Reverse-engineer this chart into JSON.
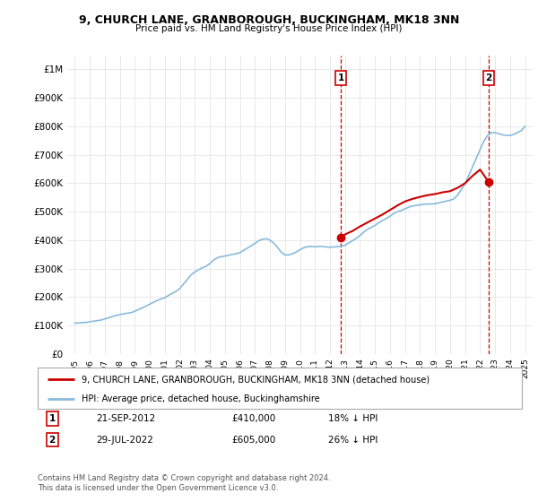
{
  "title": "9, CHURCH LANE, GRANBOROUGH, BUCKINGHAM, MK18 3NN",
  "subtitle": "Price paid vs. HM Land Registry's House Price Index (HPI)",
  "hpi_label": "HPI: Average price, detached house, Buckinghamshire",
  "property_label": "9, CHURCH LANE, GRANBOROUGH, BUCKINGHAM, MK18 3NN (detached house)",
  "hpi_color": "#88bbdd",
  "property_color": "#cc0000",
  "marker_color": "#cc0000",
  "vline_color": "#cc0000",
  "annotation_box_color": "#cc0000",
  "footer": "Contains HM Land Registry data © Crown copyright and database right 2024.\nThis data is licensed under the Open Government Licence v3.0.",
  "annotation1": {
    "num": "1",
    "date": "21-SEP-2012",
    "price": "£410,000",
    "hpi_diff": "18% ↓ HPI",
    "year": 2012.72
  },
  "annotation2": {
    "num": "2",
    "date": "29-JUL-2022",
    "price": "£605,000",
    "hpi_diff": "26% ↓ HPI",
    "year": 2022.56
  },
  "ylim": [
    0,
    1050000
  ],
  "yticks": [
    0,
    100000,
    200000,
    300000,
    400000,
    500000,
    600000,
    700000,
    800000,
    900000,
    1000000
  ],
  "ytick_labels": [
    "£0",
    "£100K",
    "£200K",
    "£300K",
    "£400K",
    "£500K",
    "£600K",
    "£700K",
    "£800K",
    "£900K",
    "£1M"
  ],
  "hpi_data": [
    [
      1995.0,
      108000
    ],
    [
      1995.25,
      109000
    ],
    [
      1995.5,
      110000
    ],
    [
      1995.75,
      110500
    ],
    [
      1996.0,
      113000
    ],
    [
      1996.25,
      115000
    ],
    [
      1996.5,
      117000
    ],
    [
      1996.75,
      119000
    ],
    [
      1997.0,
      123000
    ],
    [
      1997.25,
      127000
    ],
    [
      1997.5,
      131000
    ],
    [
      1997.75,
      135000
    ],
    [
      1998.0,
      138000
    ],
    [
      1998.25,
      141000
    ],
    [
      1998.5,
      143000
    ],
    [
      1998.75,
      145000
    ],
    [
      1999.0,
      150000
    ],
    [
      1999.25,
      156000
    ],
    [
      1999.5,
      162000
    ],
    [
      1999.75,
      168000
    ],
    [
      2000.0,
      175000
    ],
    [
      2000.25,
      182000
    ],
    [
      2000.5,
      188000
    ],
    [
      2000.75,
      193000
    ],
    [
      2001.0,
      198000
    ],
    [
      2001.25,
      206000
    ],
    [
      2001.5,
      213000
    ],
    [
      2001.75,
      220000
    ],
    [
      2002.0,
      230000
    ],
    [
      2002.25,
      246000
    ],
    [
      2002.5,
      262000
    ],
    [
      2002.75,
      278000
    ],
    [
      2003.0,
      288000
    ],
    [
      2003.25,
      296000
    ],
    [
      2003.5,
      303000
    ],
    [
      2003.75,
      308000
    ],
    [
      2004.0,
      318000
    ],
    [
      2004.25,
      330000
    ],
    [
      2004.5,
      338000
    ],
    [
      2004.75,
      342000
    ],
    [
      2005.0,
      344000
    ],
    [
      2005.25,
      347000
    ],
    [
      2005.5,
      350000
    ],
    [
      2005.75,
      352000
    ],
    [
      2006.0,
      356000
    ],
    [
      2006.25,
      364000
    ],
    [
      2006.5,
      372000
    ],
    [
      2006.75,
      380000
    ],
    [
      2007.0,
      388000
    ],
    [
      2007.25,
      398000
    ],
    [
      2007.5,
      403000
    ],
    [
      2007.75,
      405000
    ],
    [
      2008.0,
      400000
    ],
    [
      2008.25,
      390000
    ],
    [
      2008.5,
      375000
    ],
    [
      2008.75,
      358000
    ],
    [
      2009.0,
      348000
    ],
    [
      2009.25,
      348000
    ],
    [
      2009.5,
      352000
    ],
    [
      2009.75,
      358000
    ],
    [
      2010.0,
      366000
    ],
    [
      2010.25,
      373000
    ],
    [
      2010.5,
      377000
    ],
    [
      2010.75,
      378000
    ],
    [
      2011.0,
      376000
    ],
    [
      2011.25,
      378000
    ],
    [
      2011.5,
      378000
    ],
    [
      2011.75,
      376000
    ],
    [
      2012.0,
      375000
    ],
    [
      2012.25,
      376000
    ],
    [
      2012.5,
      377000
    ],
    [
      2012.75,
      378000
    ],
    [
      2013.0,
      382000
    ],
    [
      2013.25,
      390000
    ],
    [
      2013.5,
      398000
    ],
    [
      2013.75,
      406000
    ],
    [
      2014.0,
      416000
    ],
    [
      2014.25,
      428000
    ],
    [
      2014.5,
      438000
    ],
    [
      2014.75,
      445000
    ],
    [
      2015.0,
      452000
    ],
    [
      2015.25,
      461000
    ],
    [
      2015.5,
      469000
    ],
    [
      2015.75,
      476000
    ],
    [
      2016.0,
      484000
    ],
    [
      2016.25,
      494000
    ],
    [
      2016.5,
      500000
    ],
    [
      2016.75,
      504000
    ],
    [
      2017.0,
      510000
    ],
    [
      2017.25,
      516000
    ],
    [
      2017.5,
      520000
    ],
    [
      2017.75,
      522000
    ],
    [
      2018.0,
      524000
    ],
    [
      2018.25,
      526000
    ],
    [
      2018.5,
      527000
    ],
    [
      2018.75,
      527000
    ],
    [
      2019.0,
      528000
    ],
    [
      2019.25,
      531000
    ],
    [
      2019.5,
      534000
    ],
    [
      2019.75,
      537000
    ],
    [
      2020.0,
      540000
    ],
    [
      2020.25,
      545000
    ],
    [
      2020.5,
      558000
    ],
    [
      2020.75,
      578000
    ],
    [
      2021.0,
      598000
    ],
    [
      2021.25,
      628000
    ],
    [
      2021.5,
      658000
    ],
    [
      2021.75,
      688000
    ],
    [
      2022.0,
      718000
    ],
    [
      2022.25,
      748000
    ],
    [
      2022.5,
      768000
    ],
    [
      2022.75,
      778000
    ],
    [
      2023.0,
      778000
    ],
    [
      2023.25,
      774000
    ],
    [
      2023.5,
      770000
    ],
    [
      2023.75,
      768000
    ],
    [
      2024.0,
      768000
    ],
    [
      2024.25,
      772000
    ],
    [
      2024.5,
      778000
    ],
    [
      2024.75,
      785000
    ],
    [
      2025.0,
      800000
    ]
  ],
  "property_line_data": [
    [
      2012.72,
      410000
    ],
    [
      2013.0,
      420000
    ],
    [
      2013.5,
      432000
    ],
    [
      2014.0,
      448000
    ],
    [
      2014.5,
      462000
    ],
    [
      2015.0,
      476000
    ],
    [
      2015.5,
      490000
    ],
    [
      2016.0,
      506000
    ],
    [
      2016.5,
      522000
    ],
    [
      2017.0,
      536000
    ],
    [
      2017.5,
      545000
    ],
    [
      2018.0,
      552000
    ],
    [
      2018.5,
      558000
    ],
    [
      2019.0,
      562000
    ],
    [
      2019.5,
      568000
    ],
    [
      2020.0,
      572000
    ],
    [
      2020.5,
      584000
    ],
    [
      2021.0,
      600000
    ],
    [
      2021.5,
      626000
    ],
    [
      2022.0,
      648000
    ],
    [
      2022.56,
      605000
    ]
  ],
  "property_points": [
    {
      "year": 2012.72,
      "price": 410000
    },
    {
      "year": 2022.56,
      "price": 605000
    }
  ],
  "background_color": "#ffffff",
  "grid_color": "#e0e0e0",
  "xlim": [
    1994.5,
    2025.5
  ]
}
